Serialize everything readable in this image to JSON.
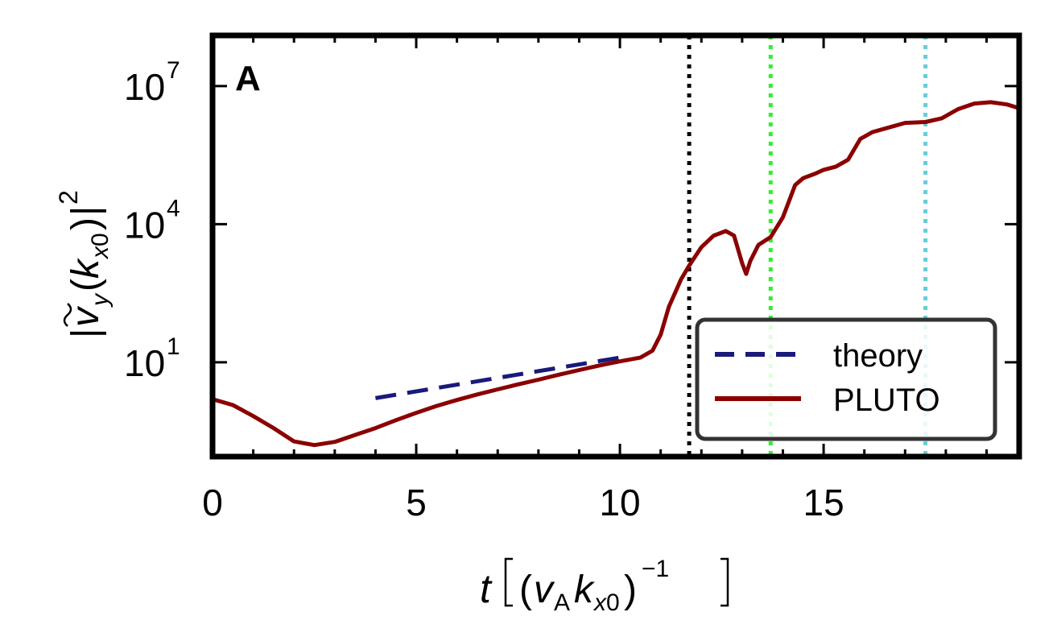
{
  "chart_data": {
    "type": "line",
    "panel_label": "A",
    "xlabel": "t [(vA kx0)^-1]",
    "ylabel": "|ṽy(kx0)|^2",
    "xlim": [
      0,
      19.8
    ],
    "ylim_log10": [
      -1.05,
      8.1
    ],
    "y_scale": "log",
    "x_ticks": [
      0,
      5,
      10,
      15
    ],
    "x_tick_labels": [
      "0",
      "5",
      "10",
      "15"
    ],
    "y_ticks_log10": [
      1,
      4,
      7
    ],
    "y_tick_labels": [
      {
        "base": "10",
        "exp": "1"
      },
      {
        "base": "10",
        "exp": "4"
      },
      {
        "base": "10",
        "exp": "7"
      }
    ],
    "vlines": [
      {
        "x": 11.7,
        "color": "#000000"
      },
      {
        "x": 13.7,
        "color": "#33ee33"
      },
      {
        "x": 17.5,
        "color": "#66ccdd"
      }
    ],
    "legend_position": "lower-right",
    "series": [
      {
        "name": "theory",
        "style": "dashed",
        "color": "#1a1a7a",
        "points": [
          [
            4.0,
            0.22
          ],
          [
            10.0,
            1.1
          ]
        ]
      },
      {
        "name": "PLUTO",
        "style": "solid",
        "color": "#8b0000",
        "points": [
          [
            0,
            0.2
          ],
          [
            0.5,
            0.07
          ],
          [
            1.0,
            -0.17
          ],
          [
            1.5,
            -0.43
          ],
          [
            2.0,
            -0.72
          ],
          [
            2.5,
            -0.8
          ],
          [
            3.0,
            -0.73
          ],
          [
            3.5,
            -0.58
          ],
          [
            4.0,
            -0.43
          ],
          [
            4.5,
            -0.26
          ],
          [
            5.0,
            -0.1
          ],
          [
            5.5,
            0.05
          ],
          [
            6.0,
            0.18
          ],
          [
            6.5,
            0.3
          ],
          [
            7.0,
            0.41
          ],
          [
            7.5,
            0.52
          ],
          [
            8.0,
            0.62
          ],
          [
            8.5,
            0.73
          ],
          [
            9.0,
            0.83
          ],
          [
            9.5,
            0.93
          ],
          [
            10.0,
            1.02
          ],
          [
            10.5,
            1.1
          ],
          [
            10.8,
            1.25
          ],
          [
            11.0,
            1.6
          ],
          [
            11.2,
            2.2
          ],
          [
            11.5,
            2.8
          ],
          [
            11.7,
            3.1
          ],
          [
            12.0,
            3.5
          ],
          [
            12.3,
            3.75
          ],
          [
            12.6,
            3.85
          ],
          [
            12.8,
            3.75
          ],
          [
            13.0,
            3.15
          ],
          [
            13.1,
            2.92
          ],
          [
            13.2,
            3.2
          ],
          [
            13.4,
            3.55
          ],
          [
            13.7,
            3.72
          ],
          [
            14.0,
            4.15
          ],
          [
            14.3,
            4.85
          ],
          [
            14.5,
            5.0
          ],
          [
            14.8,
            5.1
          ],
          [
            15.0,
            5.18
          ],
          [
            15.3,
            5.25
          ],
          [
            15.6,
            5.4
          ],
          [
            15.9,
            5.85
          ],
          [
            16.2,
            6.0
          ],
          [
            16.6,
            6.1
          ],
          [
            17.0,
            6.2
          ],
          [
            17.5,
            6.22
          ],
          [
            17.9,
            6.3
          ],
          [
            18.3,
            6.5
          ],
          [
            18.7,
            6.62
          ],
          [
            19.1,
            6.65
          ],
          [
            19.5,
            6.6
          ],
          [
            19.8,
            6.52
          ]
        ]
      }
    ]
  }
}
